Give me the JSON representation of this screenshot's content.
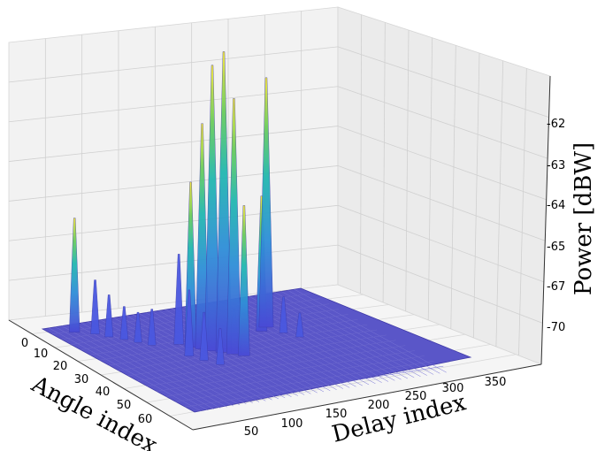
{
  "chart_data": {
    "type": "surface",
    "title": "",
    "xlabel": "Angle index",
    "ylabel": "Delay index",
    "zlabel": "Power [dBW]",
    "x_ticks": [
      "0",
      "10",
      "20",
      "30",
      "40",
      "50",
      "60"
    ],
    "y_ticks": [
      "50",
      "100",
      "150",
      "200",
      "250",
      "300",
      "350"
    ],
    "z_ticks": [
      "-70",
      "-67",
      "-65",
      "-64",
      "-63",
      "-62"
    ],
    "xlim": [
      0,
      64
    ],
    "ylim": [
      0,
      384
    ],
    "grid": true,
    "colormap": "viridis",
    "surface_color": "#5a56c8",
    "peaks": [
      {
        "angle": 5,
        "delay": 30,
        "height": 0.38
      },
      {
        "angle": 8,
        "delay": 50,
        "height": 0.18
      },
      {
        "angle": 11,
        "delay": 60,
        "height": 0.14
      },
      {
        "angle": 14,
        "delay": 72,
        "height": 0.11
      },
      {
        "angle": 17,
        "delay": 82,
        "height": 0.1
      },
      {
        "angle": 20,
        "delay": 92,
        "height": 0.12
      },
      {
        "angle": 22,
        "delay": 125,
        "height": 0.3
      },
      {
        "angle": 25,
        "delay": 132,
        "height": 0.55
      },
      {
        "angle": 27,
        "delay": 142,
        "height": 0.75
      },
      {
        "angle": 29,
        "delay": 150,
        "height": 0.95
      },
      {
        "angle": 31,
        "delay": 160,
        "height": 1.0
      },
      {
        "angle": 33,
        "delay": 168,
        "height": 0.85
      },
      {
        "angle": 35,
        "delay": 176,
        "height": 0.5
      },
      {
        "angle": 30,
        "delay": 112,
        "height": 0.22
      },
      {
        "angle": 34,
        "delay": 120,
        "height": 0.16
      },
      {
        "angle": 38,
        "delay": 130,
        "height": 0.12
      },
      {
        "angle": 24,
        "delay": 200,
        "height": 0.1
      },
      {
        "angle": 22,
        "delay": 248,
        "height": 0.45
      },
      {
        "angle": 20,
        "delay": 262,
        "height": 0.83
      },
      {
        "angle": 25,
        "delay": 270,
        "height": 0.12
      },
      {
        "angle": 29,
        "delay": 280,
        "height": 0.08
      }
    ]
  }
}
